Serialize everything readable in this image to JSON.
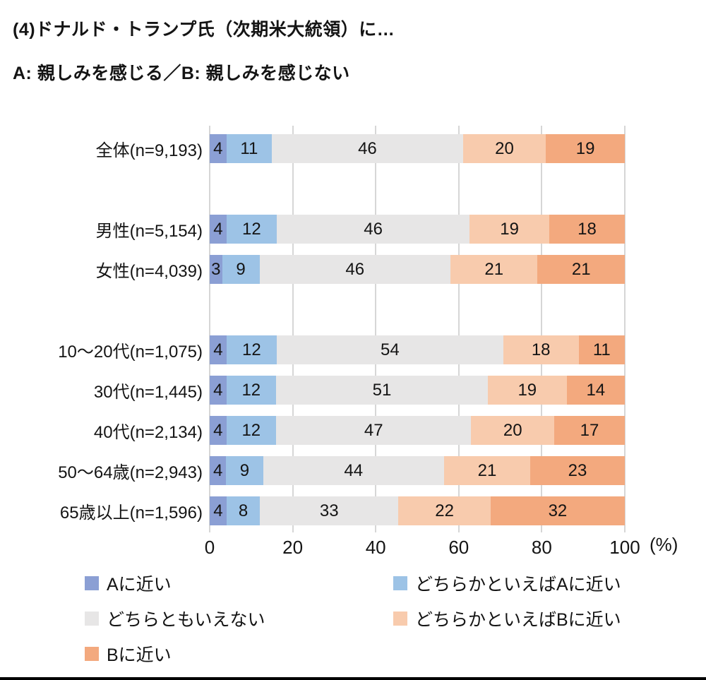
{
  "page": {
    "title": "(4)ドナルド・トランプ氏（次期米大統領）に…",
    "subtitle": "A: 親しみを感じる／B: 親しみを感じない"
  },
  "axis": {
    "tick_labels": [
      "0",
      "20",
      "40",
      "60",
      "80",
      "100"
    ],
    "unit_label": "(%)"
  },
  "legend": {
    "items": [
      {
        "label": "Aに近い",
        "color": "#8B9FD4"
      },
      {
        "label": "どちらかといえばAに近い",
        "color": "#9DC3E6"
      },
      {
        "label": "どちらともいえない",
        "color": "#E7E6E6"
      },
      {
        "label": "どちらかといえばBに近い",
        "color": "#F8CBAD"
      },
      {
        "label": "Bに近い",
        "color": "#F3A97E"
      }
    ]
  },
  "colors": {
    "gridline": "#D6D6D6",
    "text": "#141414",
    "background": "#FFFFFF",
    "bottom_rule": "#000000"
  },
  "chart_data": {
    "type": "bar",
    "stacked": true,
    "orientation": "horizontal",
    "title": "(4)ドナルド・トランプ氏（次期米大統領）に…",
    "subtitle": "A: 親しみを感じる／B: 親しみを感じない",
    "categories": [
      "全体(n=9,193)",
      "男性(n=5,154)",
      "女性(n=4,039)",
      "10〜20代(n=1,075)",
      "30代(n=1,445)",
      "40代(n=2,134)",
      "50〜64歳(n=2,943)",
      "65歳以上(n=1,596)"
    ],
    "series": [
      {
        "name": "Aに近い",
        "color": "#8B9FD4",
        "values": [
          4,
          4,
          3,
          4,
          4,
          4,
          4,
          4
        ]
      },
      {
        "name": "どちらかといえばAに近い",
        "color": "#9DC3E6",
        "values": [
          11,
          12,
          9,
          12,
          12,
          12,
          9,
          8
        ]
      },
      {
        "name": "どちらともいえない",
        "color": "#E7E6E6",
        "values": [
          46,
          46,
          46,
          54,
          51,
          47,
          44,
          33
        ]
      },
      {
        "name": "どちらかといえばBに近い",
        "color": "#F8CBAD",
        "values": [
          20,
          19,
          21,
          18,
          19,
          20,
          21,
          22
        ]
      },
      {
        "name": "Bに近い",
        "color": "#F3A97E",
        "values": [
          19,
          18,
          21,
          11,
          14,
          17,
          23,
          32
        ]
      }
    ],
    "xlim": [
      0,
      100
    ],
    "x_ticks": [
      0,
      20,
      40,
      60,
      80,
      100
    ],
    "x_unit": "(%)",
    "grid": true,
    "value_labels": "inside",
    "legend_position": "bottom",
    "group_breaks_after": [
      0,
      2
    ]
  }
}
